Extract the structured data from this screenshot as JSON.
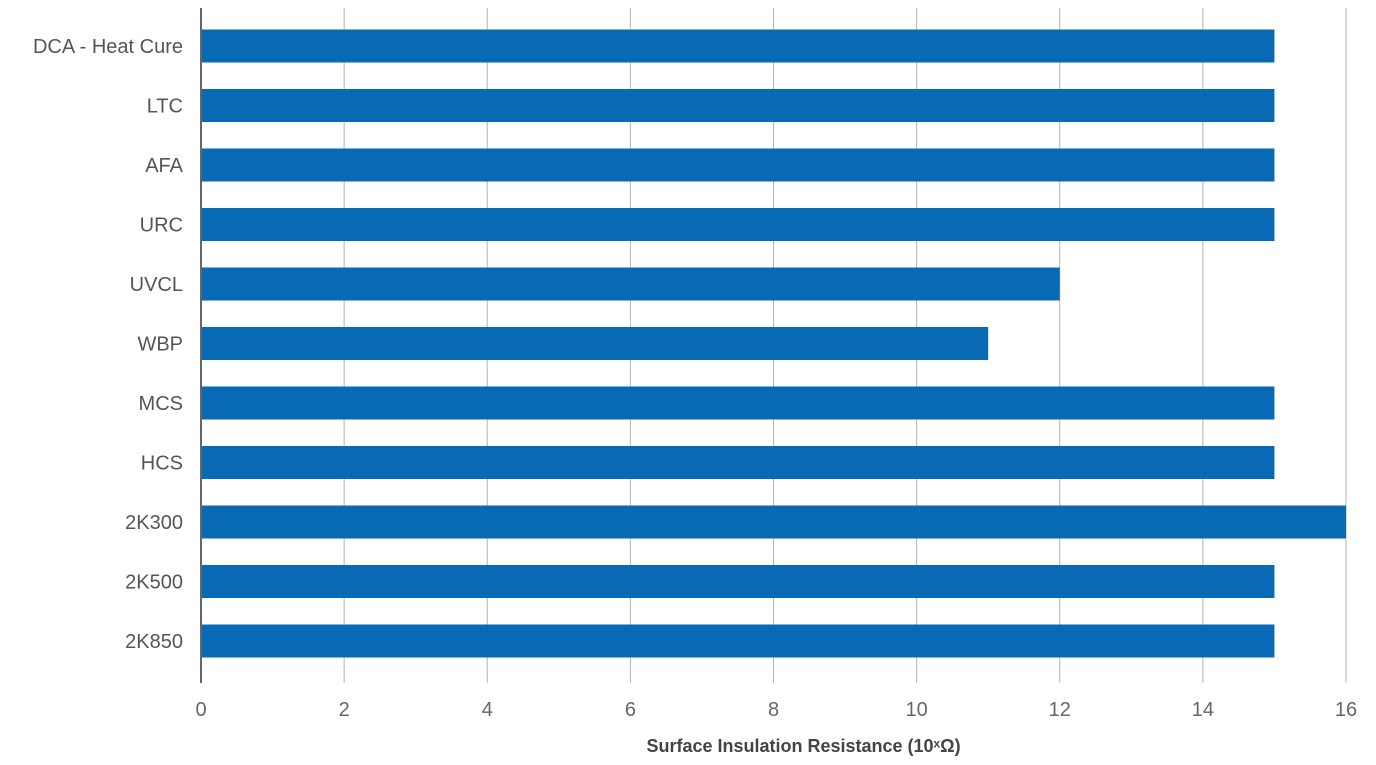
{
  "chart_data": {
    "type": "bar",
    "orientation": "horizontal",
    "title": "",
    "xlabel": "Surface Insulation Resistance (10ˣΩ)",
    "ylabel": "",
    "xlim": [
      0,
      16
    ],
    "xticks": [
      0,
      2,
      4,
      6,
      8,
      10,
      12,
      14,
      16
    ],
    "grid": true,
    "legend": "none",
    "bar_color": "#0869b4",
    "categories": [
      "DCA - Heat Cure",
      "LTC",
      "AFA",
      "URC",
      "UVCL",
      "WBP",
      "MCS",
      "HCS",
      "2K300",
      "2K500",
      "2K850"
    ],
    "values": [
      15,
      15,
      15,
      15,
      12,
      11,
      15,
      15,
      16,
      15,
      15
    ]
  }
}
